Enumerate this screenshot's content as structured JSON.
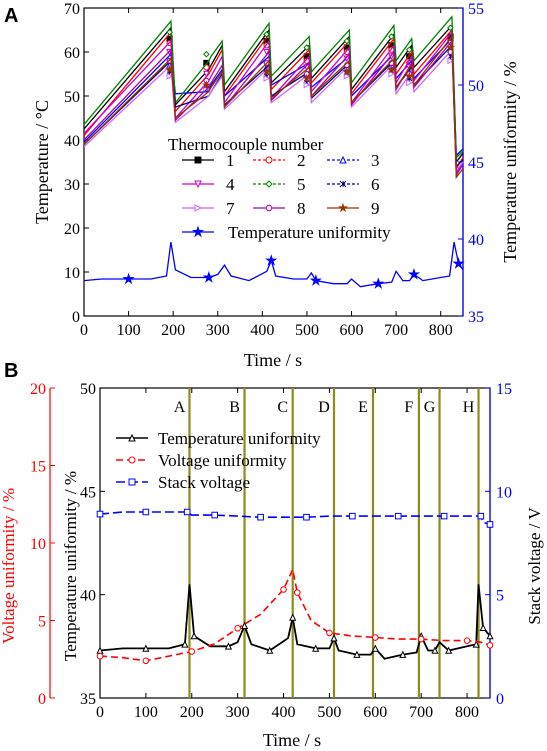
{
  "panels": [
    {
      "letter": "A"
    },
    {
      "letter": "B"
    }
  ],
  "chart_data": [
    {
      "type": "line",
      "panel": "A",
      "xlabel": "Time / s",
      "ylabel": "Temperature / °C",
      "y2label": "Temperature uniformity / %",
      "xlim": [
        0,
        850
      ],
      "ylim": [
        0,
        70
      ],
      "y2lim": [
        35,
        55
      ],
      "xticks": [
        0,
        100,
        200,
        300,
        400,
        500,
        600,
        700,
        800
      ],
      "yticks": [
        0,
        10,
        20,
        30,
        40,
        50,
        60,
        70
      ],
      "y2ticks": [
        35,
        40,
        45,
        50,
        55
      ],
      "legend_title": "Thermocouple number",
      "legend_position": "center",
      "base_x": [
        0,
        195,
        205,
        280,
        285,
        310,
        315,
        415,
        420,
        505,
        510,
        595,
        600,
        695,
        700,
        735,
        740,
        825,
        835,
        850
      ],
      "series": [
        {
          "name": "1",
          "color": "#000000",
          "marker": "square",
          "axis": "left",
          "y": [
            42.5,
            65.5,
            48.0,
            56.0,
            57.0,
            61.5,
            51.0,
            65.0,
            53.0,
            61.5,
            54.0,
            63.5,
            51.5,
            64.0,
            56.5,
            61.5,
            56.5,
            66.0,
            35.0,
            37.0
          ]
        },
        {
          "name": "2",
          "color": "#ff0000",
          "marker": "circle",
          "axis": "left",
          "y": [
            41.0,
            64.5,
            46.5,
            55.0,
            56.0,
            60.5,
            50.0,
            64.0,
            51.5,
            60.5,
            53.0,
            62.5,
            50.5,
            63.0,
            55.0,
            60.0,
            55.0,
            65.0,
            33.5,
            36.0
          ]
        },
        {
          "name": "3",
          "color": "#0000ff",
          "marker": "triangle",
          "axis": "left",
          "y": [
            39.5,
            59.5,
            50.5,
            51.0,
            52.5,
            56.0,
            50.0,
            59.0,
            52.5,
            57.5,
            52.0,
            59.0,
            50.0,
            59.5,
            54.0,
            58.0,
            54.0,
            63.0,
            36.5,
            38.0
          ]
        },
        {
          "name": "4",
          "color": "#cc00cc",
          "marker": "triangle-down",
          "axis": "left",
          "y": [
            41.5,
            62.5,
            45.0,
            53.5,
            54.5,
            59.0,
            48.5,
            62.5,
            49.5,
            59.0,
            51.0,
            61.0,
            48.5,
            61.5,
            53.0,
            59.0,
            53.5,
            64.5,
            32.5,
            35.0
          ]
        },
        {
          "name": "5",
          "color": "#008000",
          "marker": "diamond",
          "axis": "left",
          "y": [
            43.5,
            67.0,
            48.5,
            58.0,
            59.0,
            62.5,
            52.5,
            66.5,
            54.5,
            63.5,
            55.5,
            65.0,
            53.0,
            66.0,
            58.0,
            63.0,
            58.0,
            68.0,
            36.0,
            37.5
          ]
        },
        {
          "name": "6",
          "color": "#000080",
          "marker": "x",
          "axis": "left",
          "y": [
            39.0,
            58.0,
            47.5,
            50.0,
            51.0,
            55.0,
            48.0,
            57.0,
            50.0,
            55.5,
            49.5,
            57.5,
            48.5,
            58.0,
            52.0,
            56.5,
            52.5,
            61.5,
            34.0,
            35.5
          ]
        },
        {
          "name": "7",
          "color": "#cc66ff",
          "marker": "triangle-right",
          "axis": "left",
          "y": [
            38.5,
            57.0,
            44.0,
            50.0,
            51.0,
            54.5,
            47.0,
            56.5,
            48.5,
            55.0,
            48.5,
            57.0,
            47.5,
            57.5,
            50.5,
            55.5,
            51.0,
            60.5,
            33.0,
            35.0
          ]
        },
        {
          "name": "8",
          "color": "#aa00aa",
          "marker": "hexagon",
          "axis": "left",
          "y": [
            40.0,
            60.5,
            44.5,
            52.0,
            53.0,
            57.0,
            47.5,
            60.0,
            49.0,
            57.5,
            50.0,
            59.5,
            48.0,
            60.0,
            51.5,
            57.5,
            52.0,
            62.5,
            32.0,
            34.5
          ]
        },
        {
          "name": "9",
          "color": "#993300",
          "marker": "star",
          "axis": "left",
          "y": [
            39.0,
            58.5,
            45.0,
            51.0,
            52.0,
            55.5,
            47.5,
            58.0,
            49.5,
            56.5,
            50.0,
            58.0,
            48.5,
            58.5,
            52.0,
            57.0,
            52.5,
            63.5,
            31.5,
            33.5
          ]
        }
      ],
      "uniformity": {
        "name": "Temperature uniformity",
        "color": "#0000ff",
        "axis": "right",
        "x": [
          0,
          40,
          100,
          150,
          185,
          195,
          205,
          240,
          280,
          300,
          315,
          330,
          370,
          410,
          420,
          430,
          470,
          500,
          510,
          520,
          560,
          590,
          600,
          620,
          660,
          690,
          700,
          715,
          730,
          740,
          760,
          800,
          820,
          830,
          840,
          850
        ],
        "y": [
          37.3,
          37.4,
          37.4,
          37.4,
          37.6,
          39.8,
          38.0,
          37.5,
          37.5,
          37.7,
          38.3,
          37.6,
          37.3,
          37.9,
          38.6,
          37.6,
          37.4,
          37.4,
          37.8,
          37.3,
          37.1,
          37.1,
          37.4,
          36.9,
          37.1,
          37.2,
          37.9,
          37.3,
          37.3,
          37.7,
          37.3,
          37.5,
          37.6,
          39.8,
          38.4,
          38.0
        ]
      }
    },
    {
      "type": "line",
      "panel": "B",
      "xlabel": "Time / s",
      "ylabel_outer": "Voltage uniformity / %",
      "ylabel_inner": "Temperature uniformity / %",
      "y2label": "Stack voltage / V",
      "xlim": [
        0,
        850
      ],
      "y_outer_lim": [
        0,
        20
      ],
      "y_inner_lim": [
        35,
        50
      ],
      "y2lim": [
        0,
        15
      ],
      "xticks": [
        0,
        100,
        200,
        300,
        400,
        500,
        600,
        700,
        800
      ],
      "y_outer_ticks": [
        0,
        5,
        10,
        15,
        20
      ],
      "y_inner_ticks": [
        35,
        40,
        45,
        50
      ],
      "y2ticks": [
        0,
        5,
        10,
        15
      ],
      "legend_position": "top-left",
      "phase_lines": [
        {
          "label": "A",
          "x": 195
        },
        {
          "label": "B",
          "x": 315
        },
        {
          "label": "C",
          "x": 420
        },
        {
          "label": "D",
          "x": 510
        },
        {
          "label": "E",
          "x": 595
        },
        {
          "label": "F",
          "x": 695
        },
        {
          "label": "G",
          "x": 740
        },
        {
          "label": "H",
          "x": 825
        }
      ],
      "series": [
        {
          "name": "Temperature uniformity",
          "color": "#000000",
          "marker": "triangle",
          "axis": "inner",
          "x": [
            0,
            50,
            100,
            150,
            185,
            195,
            205,
            240,
            280,
            300,
            315,
            330,
            370,
            410,
            420,
            430,
            470,
            500,
            510,
            520,
            560,
            590,
            600,
            620,
            660,
            690,
            700,
            715,
            730,
            740,
            760,
            800,
            820,
            825,
            835,
            850
          ],
          "y": [
            37.3,
            37.4,
            37.4,
            37.4,
            37.6,
            40.5,
            38.0,
            37.5,
            37.5,
            37.7,
            38.5,
            37.6,
            37.3,
            37.9,
            38.9,
            37.6,
            37.4,
            37.4,
            37.9,
            37.3,
            37.1,
            37.1,
            37.4,
            36.9,
            37.1,
            37.2,
            38.0,
            37.3,
            37.3,
            37.7,
            37.3,
            37.5,
            37.6,
            40.5,
            38.4,
            38.0
          ]
        },
        {
          "name": "Voltage uniformity",
          "color": "#ff0000",
          "marker": "circle",
          "axis": "outer",
          "x": [
            0,
            50,
            100,
            150,
            200,
            250,
            300,
            350,
            400,
            420,
            430,
            460,
            500,
            550,
            600,
            650,
            700,
            750,
            800,
            830,
            850
          ],
          "y": [
            2.7,
            2.6,
            2.4,
            2.7,
            3.0,
            3.5,
            4.5,
            5.4,
            7.0,
            8.3,
            6.8,
            5.0,
            4.2,
            4.0,
            3.9,
            3.8,
            3.8,
            3.7,
            3.7,
            3.6,
            3.4
          ]
        },
        {
          "name": "Stack voltage",
          "color": "#0000ff",
          "marker": "square",
          "axis": "right",
          "x": [
            0,
            50,
            100,
            150,
            190,
            200,
            250,
            300,
            350,
            400,
            450,
            500,
            550,
            600,
            650,
            700,
            750,
            800,
            830,
            835,
            850
          ],
          "y": [
            8.9,
            9.0,
            9.0,
            9.0,
            9.0,
            8.85,
            8.85,
            8.8,
            8.75,
            8.75,
            8.75,
            8.8,
            8.8,
            8.8,
            8.8,
            8.8,
            8.8,
            8.8,
            8.8,
            8.5,
            8.4
          ]
        }
      ]
    }
  ]
}
